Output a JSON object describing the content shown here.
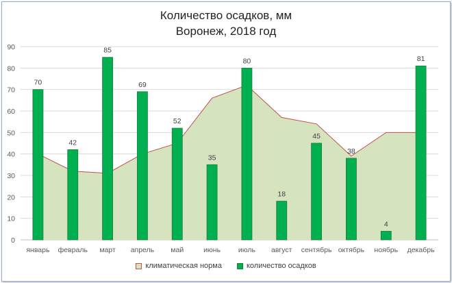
{
  "chart_data": {
    "type": "bar",
    "title": "Количество осадков, мм",
    "subtitle": "Воронеж, 2018 год",
    "categories": [
      "январь",
      "февраль",
      "март",
      "апрель",
      "май",
      "июнь",
      "июль",
      "август",
      "сентябрь",
      "октябрь",
      "ноябрь",
      "декабрь"
    ],
    "series": [
      {
        "name": "климатическая норма",
        "kind": "area",
        "values": [
          40,
          32,
          31,
          40,
          45,
          66,
          72,
          57,
          54,
          39,
          50,
          50
        ],
        "fill": "#d6e3bf",
        "line": "#c0504d"
      },
      {
        "name": "количество осадков",
        "kind": "bar",
        "values": [
          70,
          42,
          85,
          69,
          52,
          35,
          80,
          18,
          45,
          38,
          4,
          81
        ],
        "fill": "#00b050",
        "line": "#1f7a3a",
        "data_labels": [
          "70",
          "42",
          "85",
          "69",
          "52",
          "35",
          "80",
          "18",
          "45",
          "38",
          "4",
          "81"
        ]
      }
    ],
    "ylim": [
      0,
      90
    ],
    "yticks": [
      "0",
      "10",
      "20",
      "30",
      "40",
      "50",
      "60",
      "70",
      "80",
      "90"
    ],
    "grid": true,
    "legend_position": "bottom"
  }
}
